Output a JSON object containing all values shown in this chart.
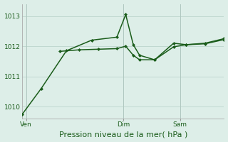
{
  "bg_color": "#ddeee8",
  "grid_color": "#c0d8d0",
  "line_color": "#1a5c1a",
  "xlabel": "Pression niveau de la mer( hPa )",
  "ylim": [
    1009.6,
    1013.4
  ],
  "yticks": [
    1010,
    1011,
    1012,
    1013
  ],
  "xlim": [
    0,
    16
  ],
  "xtick_labels": [
    "Ven",
    "",
    "Dim",
    "",
    "Sam"
  ],
  "xtick_positions": [
    0.3,
    4,
    8,
    10,
    12.5
  ],
  "vline_positions": [
    0.3,
    8,
    12.5
  ],
  "series1_x": [
    0,
    1.5,
    3.5,
    5.5,
    7.5,
    8.2,
    8.8,
    9.3,
    10.5,
    12,
    13,
    14.5,
    16
  ],
  "series1_y": [
    1009.75,
    1010.6,
    1011.85,
    1012.2,
    1012.3,
    1013.05,
    1012.05,
    1011.7,
    1011.55,
    1012.1,
    1012.05,
    1012.1,
    1012.25
  ],
  "series2_x": [
    3.0,
    4.5,
    6.0,
    7.5,
    8.2,
    8.8,
    9.3,
    10.5,
    12,
    13,
    14.5,
    16
  ],
  "series2_y": [
    1011.83,
    1011.88,
    1011.9,
    1011.92,
    1012.0,
    1011.7,
    1011.55,
    1011.55,
    1011.98,
    1012.05,
    1012.08,
    1012.22
  ],
  "marker_size": 2.5,
  "linewidth": 1.1,
  "tick_fontsize": 6.5,
  "xlabel_fontsize": 8
}
